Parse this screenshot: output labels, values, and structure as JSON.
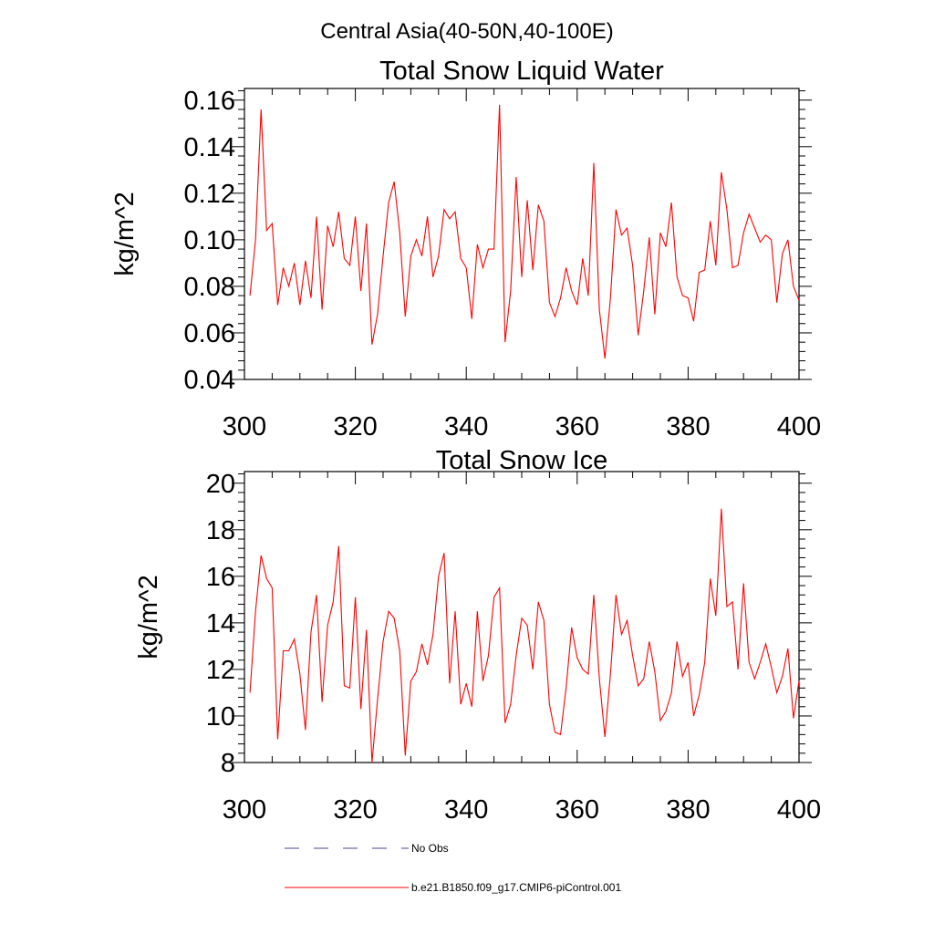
{
  "figure": {
    "suptitle": "Central Asia(40-50N,40-100E)"
  },
  "legend": {
    "entries": [
      {
        "label": "No Obs",
        "color": "#4a4a8a",
        "style": "dashed"
      },
      {
        "label": "b.e21.B1850.f09_g17.CMIP6-piControl.001",
        "color": "#ff0000",
        "style": "solid"
      }
    ]
  },
  "chart_data": [
    {
      "type": "line",
      "title": "Total Snow Liquid Water",
      "xlabel": "",
      "ylabel": "kg/m^2",
      "xlim": [
        300,
        400
      ],
      "ylim": [
        0.04,
        0.165
      ],
      "xticks": [
        300,
        320,
        340,
        360,
        380,
        400
      ],
      "xtick_labels": [
        "300",
        "320",
        "340",
        "360",
        "380",
        "400"
      ],
      "yticks": [
        0.04,
        0.06,
        0.08,
        0.1,
        0.12,
        0.14,
        0.16
      ],
      "ytick_labels": [
        "0.04",
        "0.06",
        "0.08",
        "0.10",
        "0.12",
        "0.14",
        "0.16"
      ],
      "grid": false,
      "series": [
        {
          "name": "b.e21.B1850.f09_g17.CMIP6-piControl.001",
          "color": "#ff0000",
          "x_start": 301,
          "values": [
            0.076,
            0.1,
            0.156,
            0.104,
            0.107,
            0.072,
            0.088,
            0.08,
            0.09,
            0.072,
            0.091,
            0.075,
            0.11,
            0.07,
            0.106,
            0.097,
            0.112,
            0.092,
            0.089,
            0.11,
            0.078,
            0.107,
            0.055,
            0.068,
            0.093,
            0.116,
            0.125,
            0.103,
            0.067,
            0.093,
            0.1,
            0.093,
            0.11,
            0.084,
            0.093,
            0.113,
            0.109,
            0.112,
            0.092,
            0.088,
            0.066,
            0.098,
            0.088,
            0.096,
            0.096,
            0.158,
            0.056,
            0.078,
            0.127,
            0.084,
            0.117,
            0.087,
            0.115,
            0.108,
            0.073,
            0.067,
            0.075,
            0.088,
            0.078,
            0.072,
            0.092,
            0.076,
            0.133,
            0.07,
            0.049,
            0.075,
            0.113,
            0.102,
            0.105,
            0.089,
            0.059,
            0.078,
            0.101,
            0.068,
            0.103,
            0.097,
            0.116,
            0.084,
            0.076,
            0.075,
            0.065,
            0.086,
            0.087,
            0.108,
            0.089,
            0.129,
            0.113,
            0.088,
            0.089,
            0.103,
            0.111,
            0.105,
            0.099,
            0.102,
            0.1,
            0.073,
            0.094,
            0.1,
            0.08,
            0.074
          ]
        }
      ]
    },
    {
      "type": "line",
      "title": "Total Snow Ice",
      "xlabel": "",
      "ylabel": "kg/m^2",
      "xlim": [
        300,
        400
      ],
      "ylim": [
        8,
        20.5
      ],
      "xticks": [
        300,
        320,
        340,
        360,
        380,
        400
      ],
      "xtick_labels": [
        "300",
        "320",
        "340",
        "360",
        "380",
        "400"
      ],
      "yticks": [
        8,
        10,
        12,
        14,
        16,
        18,
        20
      ],
      "ytick_labels": [
        "8",
        "10",
        "12",
        "14",
        "16",
        "18",
        "20"
      ],
      "grid": false,
      "series": [
        {
          "name": "b.e21.B1850.f09_g17.CMIP6-piControl.001",
          "color": "#ff0000",
          "x_start": 301,
          "values": [
            11.0,
            14.5,
            16.9,
            15.9,
            15.5,
            9.0,
            12.8,
            12.8,
            13.3,
            11.8,
            9.4,
            13.6,
            15.2,
            10.6,
            13.9,
            14.9,
            17.3,
            11.3,
            11.2,
            15.1,
            10.3,
            13.7,
            8.0,
            10.7,
            13.2,
            14.5,
            14.2,
            12.8,
            8.3,
            11.5,
            11.9,
            13.1,
            12.2,
            13.5,
            16.0,
            17.0,
            11.4,
            14.5,
            10.5,
            11.4,
            10.4,
            14.5,
            11.5,
            12.6,
            15.1,
            15.5,
            9.7,
            10.5,
            12.6,
            14.2,
            13.9,
            12.0,
            14.9,
            14.1,
            10.5,
            9.3,
            9.2,
            11.2,
            13.8,
            12.5,
            12.0,
            11.8,
            15.2,
            11.6,
            9.1,
            11.8,
            15.2,
            13.5,
            14.1,
            12.6,
            11.3,
            11.6,
            13.2,
            11.9,
            9.8,
            10.2,
            11.0,
            13.2,
            11.7,
            12.3,
            10.0,
            10.9,
            12.3,
            15.9,
            14.3,
            18.9,
            14.7,
            14.9,
            12.0,
            15.7,
            12.3,
            11.6,
            12.3,
            13.1,
            12.1,
            11.0,
            11.7,
            12.9,
            9.9,
            11.5
          ]
        }
      ]
    }
  ]
}
